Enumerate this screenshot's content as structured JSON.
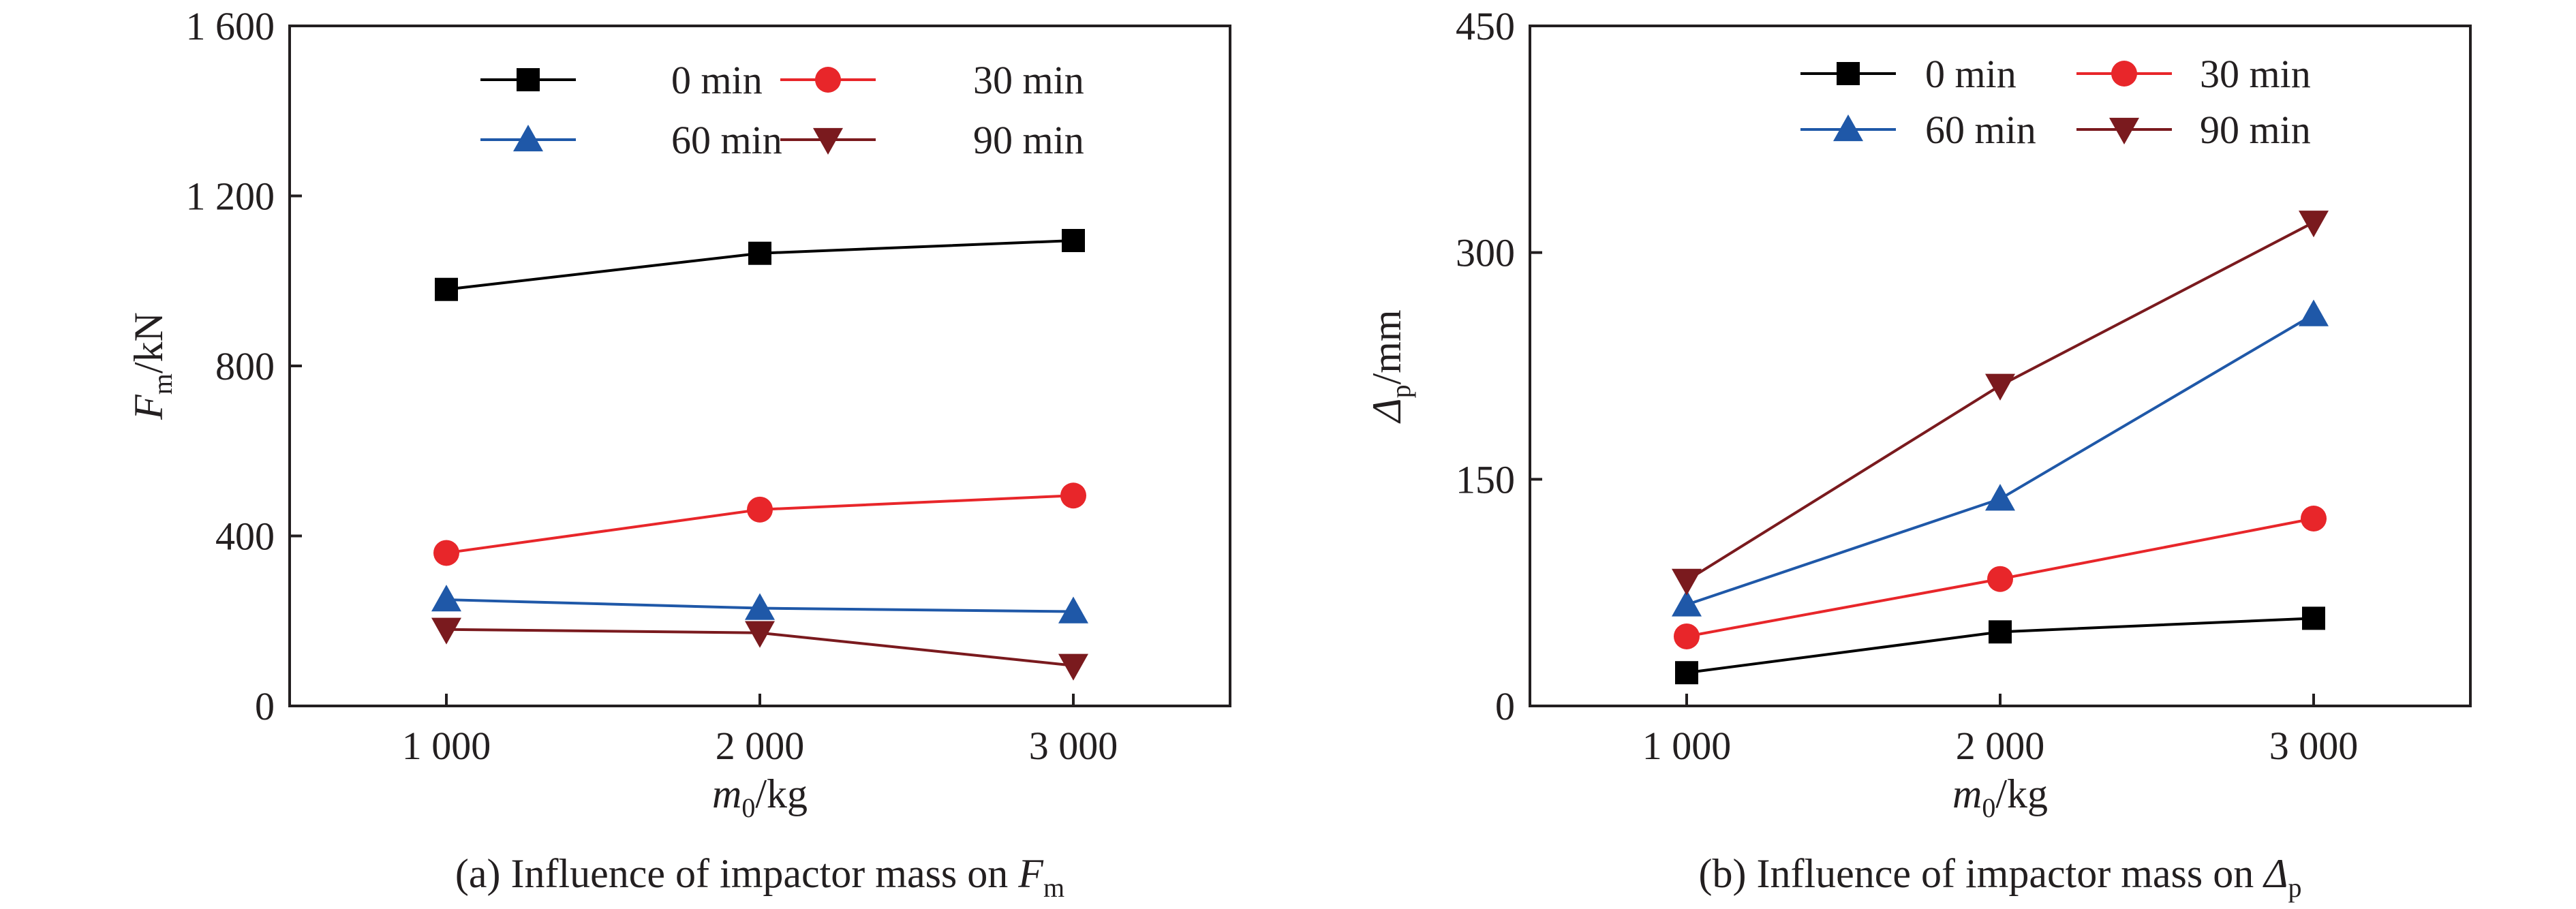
{
  "chart_data": [
    {
      "type": "line",
      "x": [
        1000,
        2000,
        3000
      ],
      "xtick_labels": [
        "1 000",
        "2 000",
        "3 000"
      ],
      "xlabel": {
        "main": "m",
        "sub": "0",
        "unit": "/kg"
      },
      "ylabel": {
        "main": "F",
        "sub": "m",
        "unit": "/kN"
      },
      "ylim": [
        0,
        1600
      ],
      "yticks": [
        0,
        400,
        800,
        1200,
        1600
      ],
      "ytick_labels": [
        "0",
        "400",
        "800",
        "1 200",
        "1 600"
      ],
      "xlim": [
        500,
        3500
      ],
      "grid": false,
      "legend_position": "top-right",
      "caption": {
        "prefix": "(a) Influence of impactor mass on ",
        "main": "F",
        "sub": "m"
      },
      "series": [
        {
          "name": "0 min",
          "color": "#000000",
          "marker": "square",
          "values": [
            980,
            1065,
            1095
          ]
        },
        {
          "name": "30 min",
          "color": "#e8262a",
          "marker": "circle",
          "values": [
            360,
            462,
            495
          ]
        },
        {
          "name": "60 min",
          "color": "#1f58a8",
          "marker": "triangle-up",
          "values": [
            250,
            230,
            222
          ]
        },
        {
          "name": "90 min",
          "color": "#7a1a1e",
          "marker": "triangle-down",
          "values": [
            180,
            172,
            95
          ]
        }
      ]
    },
    {
      "type": "line",
      "x": [
        1000,
        2000,
        3000
      ],
      "xtick_labels": [
        "1 000",
        "2 000",
        "3 000"
      ],
      "xlabel": {
        "main": "m",
        "sub": "0",
        "unit": "/kg"
      },
      "ylabel": {
        "main": "Δ",
        "sub": "p",
        "unit": "/mm"
      },
      "ylim": [
        0,
        450
      ],
      "yticks": [
        0,
        150,
        300,
        450
      ],
      "ytick_labels": [
        "0",
        "150",
        "300",
        "450"
      ],
      "xlim": [
        500,
        3500
      ],
      "grid": false,
      "legend_position": "top-right",
      "caption": {
        "prefix": "(b) Influence of impactor mass on ",
        "main": "Δ",
        "sub": "p"
      },
      "series": [
        {
          "name": "0 min",
          "color": "#000000",
          "marker": "square",
          "values": [
            22,
            49,
            58
          ]
        },
        {
          "name": "30 min",
          "color": "#e8262a",
          "marker": "circle",
          "values": [
            46,
            84,
            124
          ]
        },
        {
          "name": "60 min",
          "color": "#1f58a8",
          "marker": "triangle-up",
          "values": [
            67,
            137,
            259
          ]
        },
        {
          "name": "90 min",
          "color": "#7a1a1e",
          "marker": "triangle-down",
          "values": [
            83,
            212,
            320
          ]
        }
      ]
    }
  ]
}
